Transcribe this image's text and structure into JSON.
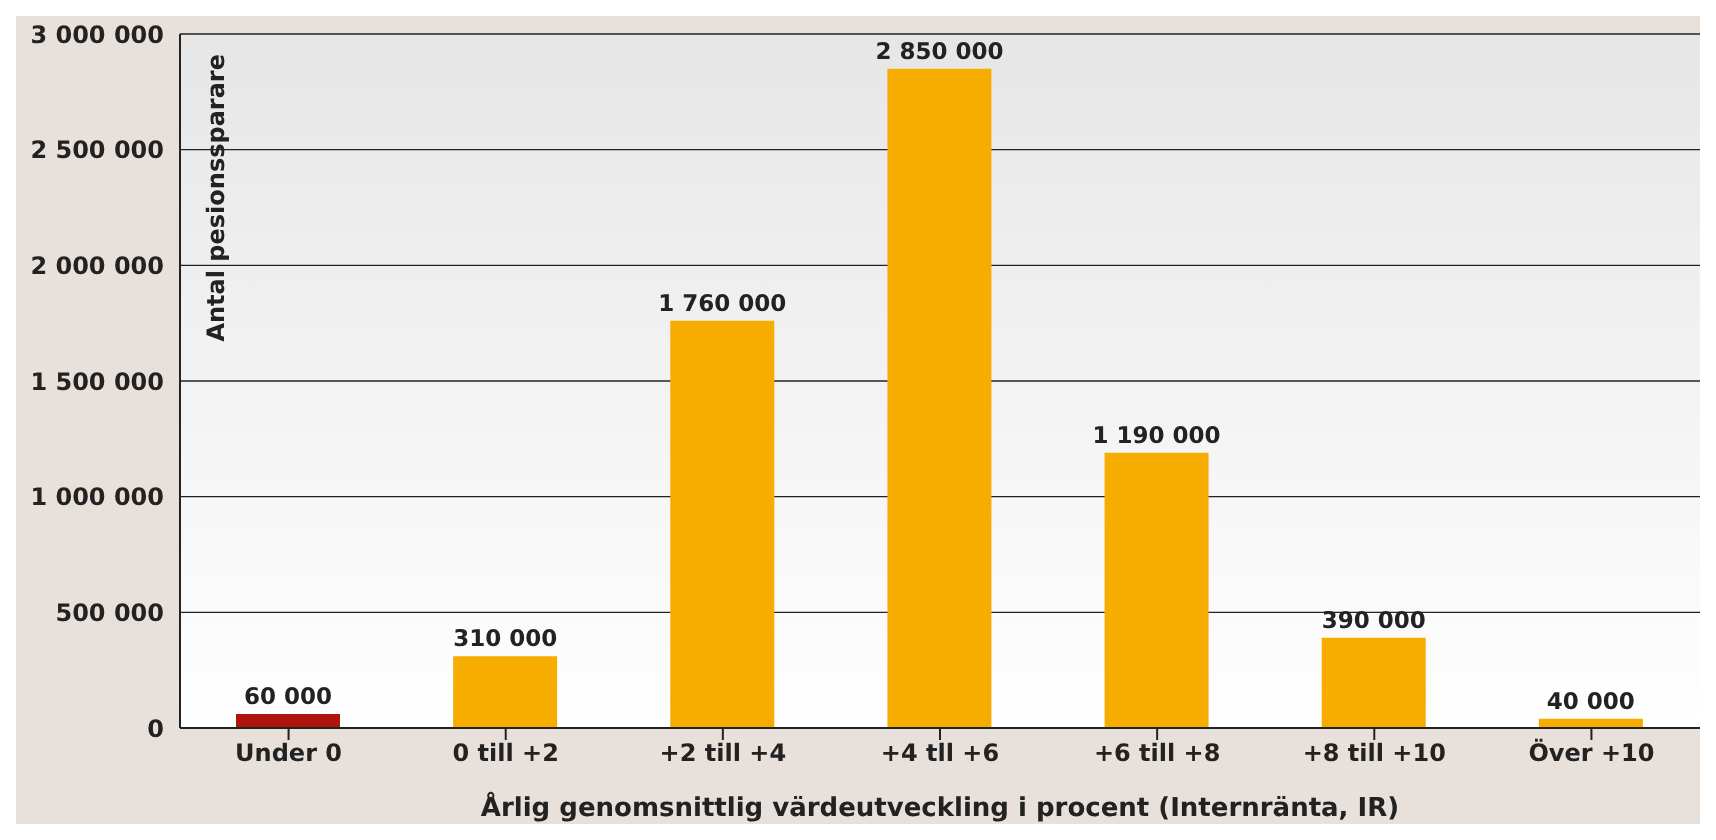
{
  "chart_data": {
    "type": "bar",
    "xlabel": "Årlig genomsnittlig värdeutveckling i procent (Internränta, IR)",
    "ylabel": "Antal pesionssparare",
    "categories": [
      "Under 0",
      "0 till +2",
      "+2 till +4",
      "+4 tll +6",
      "+6 till +8",
      "+8 till +10",
      "Över +10"
    ],
    "values": [
      60000,
      310000,
      1760000,
      2850000,
      1190000,
      390000,
      40000
    ],
    "colors": [
      "#b0140f",
      "#f7ad00",
      "#f7ad00",
      "#f7ad00",
      "#f7ad00",
      "#f7ad00",
      "#f7ad00"
    ],
    "value_labels": [
      "60 000",
      "310 000",
      "1 760 000",
      "2 850 000",
      "1 190 000",
      "390 000",
      "40 000"
    ],
    "ylim": [
      0,
      3000000
    ],
    "yticks": [
      {
        "value": 0,
        "label": "0"
      },
      {
        "value": 500000,
        "label": "500 000"
      },
      {
        "value": 1000000,
        "label": "1 000 000"
      },
      {
        "value": 1500000,
        "label": "1 500 000"
      },
      {
        "value": 2000000,
        "label": "2 000 000"
      },
      {
        "value": 2500000,
        "label": "2 500 000"
      },
      {
        "value": 3000000,
        "label": "3 000 000"
      }
    ],
    "grid": "y"
  }
}
